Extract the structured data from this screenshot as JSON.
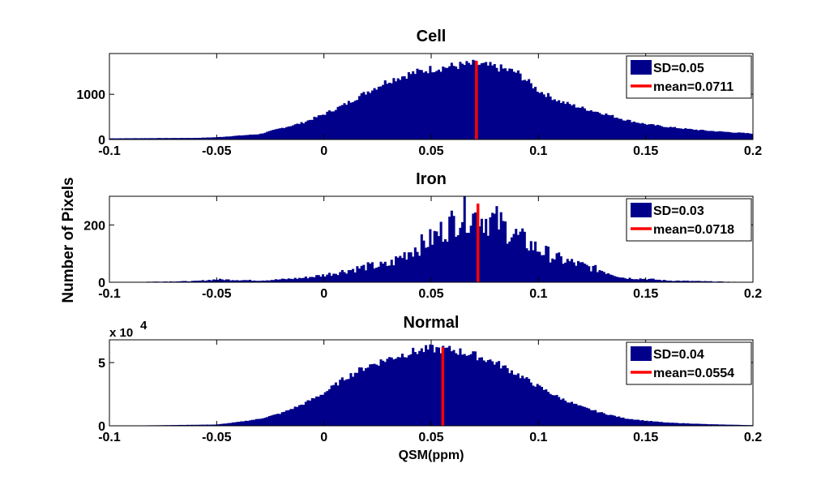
{
  "figure": {
    "ylabel": "Number of Pixels",
    "xlabel": "QSM(ppm)",
    "colors": {
      "bars": "#00008b",
      "mean_line": "#ff0000",
      "axes": "#000000"
    }
  },
  "chart_data": [
    {
      "type": "bar",
      "title": "Cell",
      "xlim": [
        -0.1,
        0.2
      ],
      "ylim": [
        0,
        1900
      ],
      "x_ticks": [
        "-0.1",
        "-0.05",
        "0",
        "0.05",
        "0.1",
        "0.15",
        "0.2"
      ],
      "x_tick_values": [
        -0.1,
        -0.05,
        0,
        0.05,
        0.1,
        0.15,
        0.2
      ],
      "y_ticks": [
        "0",
        "1000"
      ],
      "y_tick_values": [
        0,
        1000
      ],
      "multiplier": "",
      "distribution_points": {
        "x": [
          -0.1,
          -0.06,
          -0.05,
          -0.03,
          -0.02,
          -0.01,
          0,
          0.01,
          0.02,
          0.03,
          0.04,
          0.05,
          0.06,
          0.07,
          0.08,
          0.09,
          0.1,
          0.11,
          0.12,
          0.13,
          0.14,
          0.15,
          0.16,
          0.17,
          0.18,
          0.19,
          0.2
        ],
        "y": [
          25,
          35,
          50,
          120,
          250,
          370,
          560,
          780,
          1050,
          1300,
          1450,
          1560,
          1620,
          1670,
          1600,
          1480,
          1080,
          840,
          700,
          580,
          440,
          340,
          280,
          230,
          190,
          160,
          130
        ]
      },
      "legend": {
        "sd": "SD=0.05",
        "mean": "mean=0.0711"
      },
      "mean": 0.0711,
      "sd": 0.05
    },
    {
      "type": "bar",
      "title": "Iron",
      "xlim": [
        -0.1,
        0.2
      ],
      "ylim": [
        0,
        300
      ],
      "x_ticks": [
        "-0.1",
        "-0.05",
        "0",
        "0.05",
        "0.1",
        "0.15",
        "0.2"
      ],
      "x_tick_values": [
        -0.1,
        -0.05,
        0,
        0.05,
        0.1,
        0.15,
        0.2
      ],
      "y_ticks": [
        "0",
        "200"
      ],
      "y_tick_values": [
        0,
        200
      ],
      "multiplier": "",
      "distribution_points": {
        "x": [
          -0.1,
          -0.06,
          -0.05,
          -0.03,
          -0.02,
          -0.01,
          0,
          0.01,
          0.02,
          0.03,
          0.04,
          0.05,
          0.06,
          0.065,
          0.07,
          0.08,
          0.09,
          0.1,
          0.11,
          0.12,
          0.13,
          0.14,
          0.15,
          0.16,
          0.18,
          0.2
        ],
        "y": [
          0,
          4,
          10,
          6,
          10,
          15,
          25,
          40,
          55,
          60,
          110,
          150,
          210,
          240,
          230,
          215,
          160,
          115,
          80,
          60,
          40,
          15,
          12,
          6,
          3,
          0
        ]
      },
      "legend": {
        "sd": "SD=0.03",
        "mean": "mean=0.0718"
      },
      "mean": 0.0718,
      "sd": 0.03
    },
    {
      "type": "bar",
      "title": "Normal",
      "xlim": [
        -0.1,
        0.2
      ],
      "ylim": [
        0,
        6.8
      ],
      "x_ticks": [
        "-0.1",
        "-0.05",
        "0",
        "0.05",
        "0.1",
        "0.15",
        "0.2"
      ],
      "x_tick_values": [
        -0.1,
        -0.05,
        0,
        0.05,
        0.1,
        0.15,
        0.2
      ],
      "y_ticks": [
        "0",
        "5"
      ],
      "y_tick_values": [
        0,
        5
      ],
      "multiplier": "x 10",
      "multiplier_exp": "4",
      "distribution_points": {
        "x": [
          -0.1,
          -0.05,
          -0.04,
          -0.03,
          -0.02,
          -0.01,
          0,
          0.01,
          0.02,
          0.03,
          0.04,
          0.05,
          0.06,
          0.07,
          0.08,
          0.09,
          0.1,
          0.11,
          0.12,
          0.13,
          0.14,
          0.15,
          0.16,
          0.18,
          0.2
        ],
        "y": [
          0,
          0.1,
          0.3,
          0.55,
          1.0,
          1.7,
          2.6,
          3.8,
          4.7,
          5.3,
          5.8,
          6.1,
          6.0,
          5.6,
          5.0,
          4.1,
          3.1,
          2.2,
          1.5,
          1.0,
          0.6,
          0.4,
          0.25,
          0.12,
          0.05
        ]
      },
      "legend": {
        "sd": "SD=0.04",
        "mean": "mean=0.0554"
      },
      "mean": 0.0554,
      "sd": 0.04
    }
  ]
}
